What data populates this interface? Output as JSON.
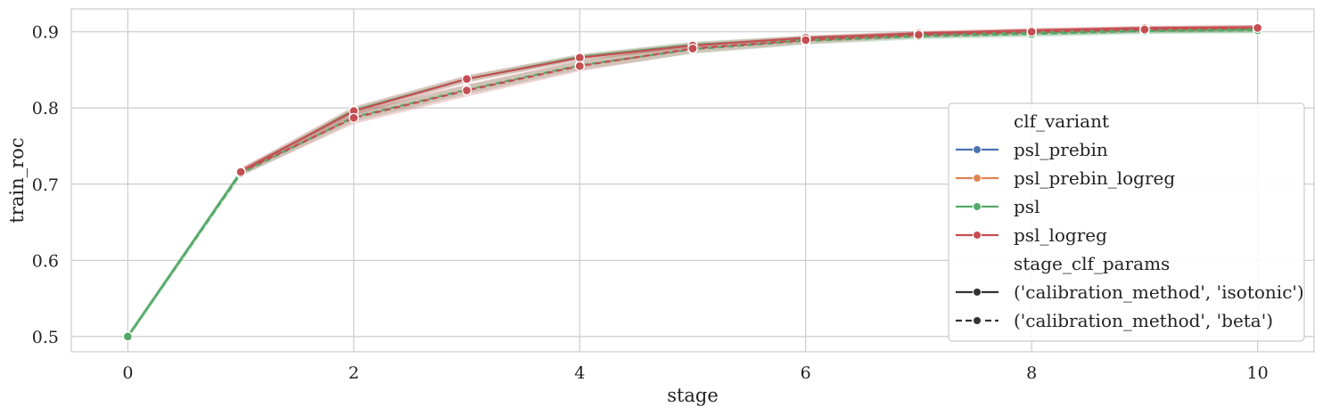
{
  "chart_data": {
    "type": "line",
    "xlabel": "stage",
    "ylabel": "train_roc",
    "xlim": [
      -0.5,
      10.5
    ],
    "ylim": [
      0.48,
      0.93
    ],
    "xticks": [
      0,
      2,
      4,
      6,
      8,
      10
    ],
    "yticks": [
      0.5,
      0.6,
      0.7,
      0.8,
      0.9
    ],
    "x": [
      0,
      1,
      2,
      3,
      4,
      5,
      6,
      7,
      8,
      9,
      10
    ],
    "grid": true,
    "legend": {
      "placement": "bottom-right",
      "hue_title": "clf_variant",
      "style_title": "stage_clf_params",
      "style_entries": [
        {
          "label": "('calibration_method', 'isotonic')",
          "dash": "solid"
        },
        {
          "label": "('calibration_method', 'beta')",
          "dash": "dashed"
        }
      ]
    },
    "series": [
      {
        "name": "psl_prebin",
        "color": "#4c72b0",
        "style": "isotonic",
        "visible": false,
        "values": [
          0.5,
          0.718,
          0.797,
          0.838,
          0.866,
          0.882,
          0.892,
          0.898,
          0.902,
          0.905,
          0.906
        ]
      },
      {
        "name": "psl_prebin_logreg",
        "color": "#dd8452",
        "style": "isotonic",
        "visible": false,
        "values": [
          0.5,
          0.718,
          0.797,
          0.838,
          0.866,
          0.882,
          0.892,
          0.898,
          0.902,
          0.905,
          0.906
        ]
      },
      {
        "name": "psl",
        "color": "#55a868",
        "style": "isotonic",
        "values": [
          0.5,
          0.716,
          0.797,
          0.838,
          0.867,
          0.883,
          0.891,
          0.896,
          0.899,
          0.902,
          0.903
        ],
        "band": [
          0.004,
          0.004,
          0.004,
          0.004,
          0.004,
          0.004,
          0.004,
          0.004,
          0.004,
          0.004,
          0.004
        ]
      },
      {
        "name": "psl",
        "color": "#55a868",
        "style": "beta",
        "values": [
          0.5,
          0.714,
          0.788,
          0.824,
          0.856,
          0.877,
          0.888,
          0.894,
          0.897,
          0.901,
          0.902
        ],
        "band": [
          0.004,
          0.004,
          0.006,
          0.006,
          0.006,
          0.006,
          0.005,
          0.004,
          0.004,
          0.004,
          0.004
        ]
      },
      {
        "name": "psl_logreg",
        "color": "#c44e52",
        "style": "isotonic",
        "values": [
          null,
          0.717,
          0.796,
          0.838,
          0.866,
          0.882,
          0.892,
          0.898,
          0.902,
          0.905,
          0.906
        ],
        "band": [
          0,
          0.004,
          0.006,
          0.005,
          0.004,
          0.004,
          0.003,
          0.003,
          0.003,
          0.003,
          0.003
        ]
      },
      {
        "name": "psl_logreg",
        "color": "#c44e52",
        "style": "beta",
        "values": [
          null,
          0.716,
          0.787,
          0.823,
          0.855,
          0.878,
          0.889,
          0.896,
          0.9,
          0.903,
          0.905
        ],
        "band": [
          0,
          0.005,
          0.008,
          0.008,
          0.007,
          0.006,
          0.005,
          0.004,
          0.004,
          0.004,
          0.004
        ]
      }
    ],
    "legend_hue_entries": [
      {
        "name": "psl_prebin",
        "color": "#4c72b0"
      },
      {
        "name": "psl_prebin_logreg",
        "color": "#dd8452"
      },
      {
        "name": "psl",
        "color": "#55a868"
      },
      {
        "name": "psl_logreg",
        "color": "#c44e52"
      }
    ]
  }
}
